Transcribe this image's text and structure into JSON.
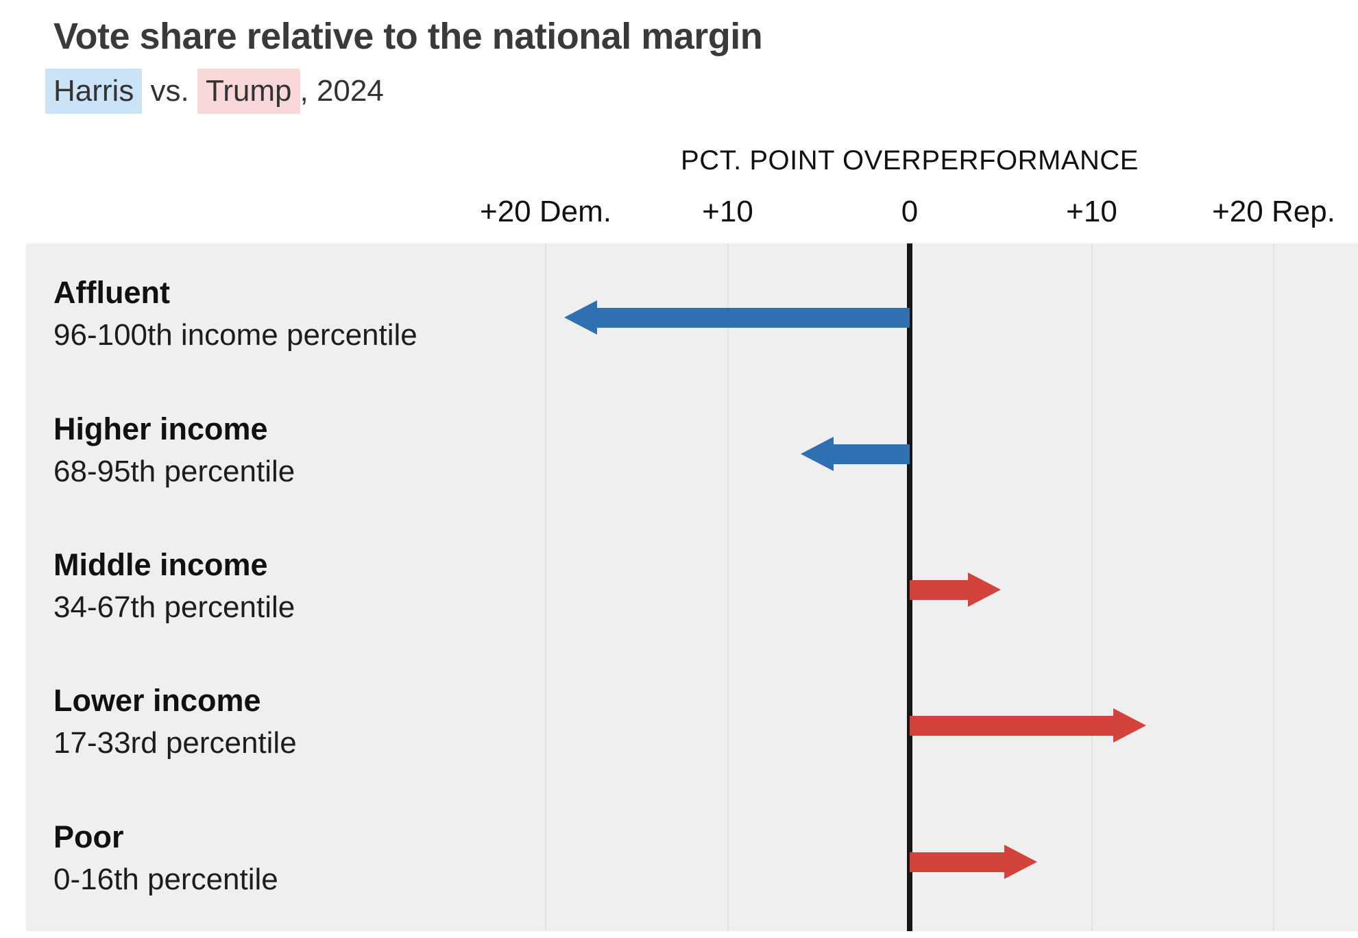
{
  "header": {
    "title": "Vote share relative to the national margin",
    "subtitle": {
      "harris": "Harris",
      "vs": " vs. ",
      "trump": "Trump",
      "suffix": ", 2024"
    }
  },
  "axis": {
    "title": "PCT. POINT OVERPERFORMANCE"
  },
  "colors": {
    "dem_arrow": "#2e70b2",
    "rep_arrow": "#d4433b",
    "harris_highlight": "#cae3f7",
    "trump_highlight": "#f9d8da",
    "panel_background": "#efefef",
    "gridline": "#e2e2e2",
    "zero_line": "#161616",
    "title_text": "#3a3a3a"
  },
  "chart_data": {
    "type": "bar",
    "variant": "diverging-horizontal-arrows",
    "title": "Vote share relative to the national margin",
    "subtitle": "Harris vs. Trump, 2024",
    "xlabel": "PCT. POINT OVERPERFORMANCE",
    "ylabel": "",
    "categories": [
      "Affluent",
      "Higher income",
      "Middle income",
      "Lower income",
      "Poor"
    ],
    "category_sublabels": [
      "96-100th income percentile",
      "68-95th percentile",
      "34-67th percentile",
      "17-33rd percentile",
      "0-16th percentile"
    ],
    "values": [
      -19,
      -6,
      5,
      13,
      7
    ],
    "series_parties": [
      "Dem",
      "Dem",
      "Rep",
      "Rep",
      "Rep"
    ],
    "value_sign_convention": "negative = Democratic (Harris) overperformance, positive = Republican (Trump) overperformance, in pct. points",
    "tick_values": [
      -20,
      -10,
      0,
      10,
      20
    ],
    "tick_labels": [
      "+20 Dem.",
      "+10",
      "0",
      "+10",
      "+20 Rep."
    ],
    "xlim": [
      -48.5,
      24.6
    ],
    "grid": true,
    "legend_position": "none"
  }
}
